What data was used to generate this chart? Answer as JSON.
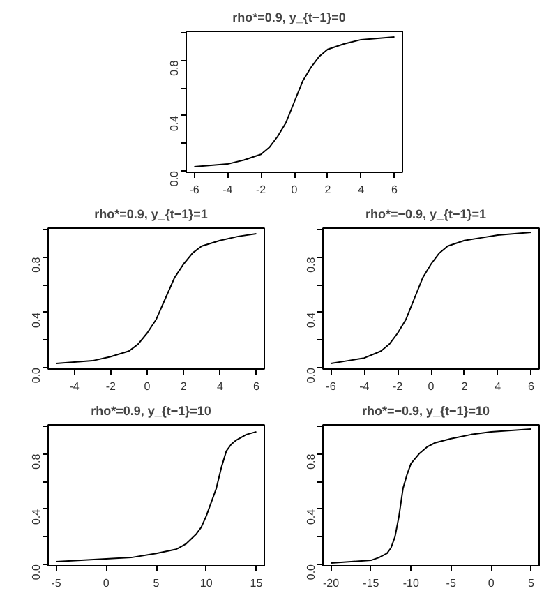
{
  "chart_data": [
    {
      "type": "line",
      "title": "rho*=0.9,    y_{t−1}=0",
      "x": [
        -6,
        -5,
        -4,
        -3,
        -2,
        -1.5,
        -1,
        -0.5,
        0,
        0.5,
        1,
        1.5,
        2,
        3,
        4,
        5,
        6
      ],
      "series": [
        {
          "color": "#000000",
          "values": [
            0.03,
            0.04,
            0.05,
            0.08,
            0.12,
            0.17,
            0.25,
            0.35,
            0.5,
            0.65,
            0.75,
            0.83,
            0.88,
            0.92,
            0.95,
            0.96,
            0.97
          ]
        }
      ],
      "xlim": [
        -6.48,
        6.48
      ],
      "xticks": [
        -6,
        -4,
        -2,
        0,
        2,
        4,
        6
      ],
      "ylim": [
        -0.01,
        1.01
      ],
      "yticks": [
        {
          "value": 0,
          "label": "0.0"
        },
        {
          "value": 0.2,
          "label": null
        },
        {
          "value": 0.4,
          "label": "0.4"
        },
        {
          "value": 0.6,
          "label": null
        },
        {
          "value": 0.8,
          "label": "0.8"
        },
        {
          "value": 1.0,
          "label": null
        }
      ]
    },
    {
      "type": "line",
      "title": "rho*=0.9,    y_{t−1}=1",
      "x": [
        -5,
        -4,
        -3,
        -2,
        -1,
        -0.5,
        0,
        0.5,
        1,
        1.5,
        2,
        2.5,
        3,
        4,
        5,
        6
      ],
      "series": [
        {
          "color": "#000000",
          "values": [
            0.03,
            0.04,
            0.05,
            0.08,
            0.12,
            0.17,
            0.25,
            0.35,
            0.5,
            0.65,
            0.75,
            0.83,
            0.88,
            0.92,
            0.95,
            0.97
          ]
        }
      ],
      "xlim": [
        -5.44,
        6.44
      ],
      "xticks": [
        -4,
        -2,
        0,
        2,
        4,
        6
      ],
      "ylim": [
        -0.01,
        1.01
      ],
      "yticks": [
        {
          "value": 0,
          "label": "0.0"
        },
        {
          "value": 0.2,
          "label": null
        },
        {
          "value": 0.4,
          "label": "0.4"
        },
        {
          "value": 0.6,
          "label": null
        },
        {
          "value": 0.8,
          "label": "0.8"
        },
        {
          "value": 1.0,
          "label": null
        }
      ]
    },
    {
      "type": "line",
      "title": "rho*=−0.9,    y_{t−1}=1",
      "x": [
        -6,
        -5,
        -4,
        -3,
        -2.5,
        -2,
        -1.5,
        -1,
        -0.5,
        0,
        0.5,
        1,
        2,
        3,
        4,
        5,
        6
      ],
      "series": [
        {
          "color": "#000000",
          "values": [
            0.03,
            0.05,
            0.07,
            0.12,
            0.17,
            0.25,
            0.35,
            0.5,
            0.65,
            0.75,
            0.83,
            0.88,
            0.92,
            0.94,
            0.96,
            0.97,
            0.98
          ]
        }
      ],
      "xlim": [
        -6.48,
        6.48
      ],
      "xticks": [
        -6,
        -4,
        -2,
        0,
        2,
        4,
        6
      ],
      "ylim": [
        -0.01,
        1.01
      ],
      "yticks": [
        {
          "value": 0,
          "label": "0.0"
        },
        {
          "value": 0.2,
          "label": null
        },
        {
          "value": 0.4,
          "label": "0.4"
        },
        {
          "value": 0.6,
          "label": null
        },
        {
          "value": 0.8,
          "label": "0.8"
        },
        {
          "value": 1.0,
          "label": null
        }
      ]
    },
    {
      "type": "line",
      "title": "rho*=0.9,    y_{t−1}=10",
      "x": [
        -5,
        -2.5,
        0,
        2.5,
        5,
        7,
        8,
        9,
        9.5,
        10,
        10.5,
        11,
        11.5,
        12,
        12.5,
        13,
        14,
        15
      ],
      "series": [
        {
          "color": "#000000",
          "values": [
            0.02,
            0.03,
            0.04,
            0.05,
            0.08,
            0.11,
            0.15,
            0.22,
            0.27,
            0.35,
            0.45,
            0.55,
            0.7,
            0.82,
            0.87,
            0.9,
            0.94,
            0.96
          ]
        }
      ],
      "xlim": [
        -5.8,
        15.8
      ],
      "xticks": [
        -5,
        0,
        5,
        10,
        15
      ],
      "ylim": [
        -0.01,
        1.01
      ],
      "yticks": [
        {
          "value": 0,
          "label": "0.0"
        },
        {
          "value": 0.2,
          "label": null
        },
        {
          "value": 0.4,
          "label": "0.4"
        },
        {
          "value": 0.6,
          "label": null
        },
        {
          "value": 0.8,
          "label": "0.8"
        },
        {
          "value": 1.0,
          "label": null
        }
      ]
    },
    {
      "type": "line",
      "title": "rho*=−0.9,    y_{t−1}=10",
      "x": [
        -20,
        -17.5,
        -15,
        -14,
        -13,
        -12.5,
        -12,
        -11.5,
        -11,
        -10.5,
        -10,
        -9,
        -8,
        -7,
        -5,
        -2.5,
        0,
        2.5,
        5
      ],
      "series": [
        {
          "color": "#000000",
          "values": [
            0.01,
            0.02,
            0.03,
            0.05,
            0.08,
            0.12,
            0.2,
            0.35,
            0.55,
            0.65,
            0.73,
            0.8,
            0.85,
            0.88,
            0.91,
            0.94,
            0.96,
            0.97,
            0.98
          ]
        }
      ],
      "xlim": [
        -21,
        6
      ],
      "xticks": [
        -20,
        -15,
        -10,
        -5,
        0,
        5
      ],
      "ylim": [
        -0.01,
        1.01
      ],
      "yticks": [
        {
          "value": 0,
          "label": "0.0"
        },
        {
          "value": 0.2,
          "label": null
        },
        {
          "value": 0.4,
          "label": "0.4"
        },
        {
          "value": 0.6,
          "label": null
        },
        {
          "value": 0.8,
          "label": "0.8"
        },
        {
          "value": 1.0,
          "label": null
        }
      ]
    }
  ]
}
